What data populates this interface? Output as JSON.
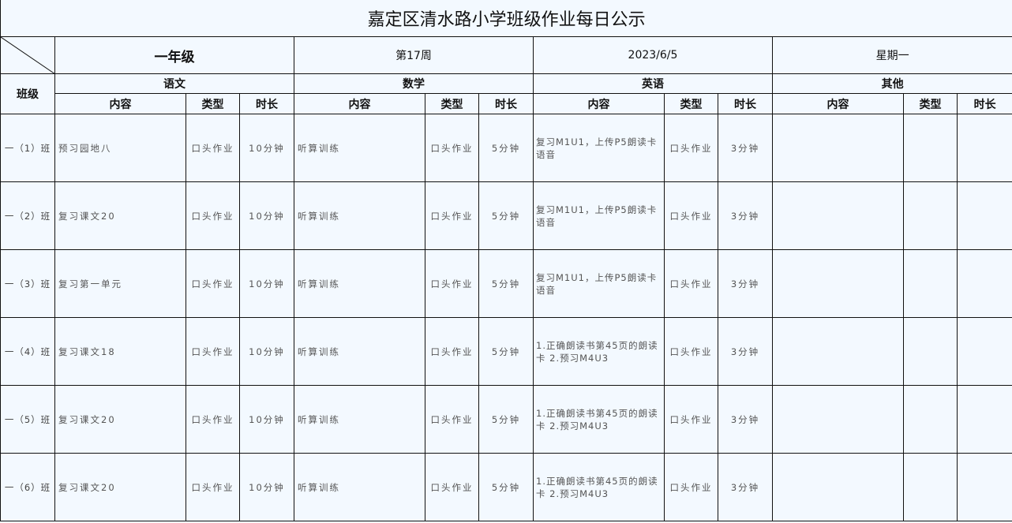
{
  "title": "嘉定区清水路小学班级作业每日公示",
  "header": {
    "grade": "一年级",
    "week": "第17周",
    "date": "2023/6/5",
    "weekday": "星期一",
    "class_label": "班级"
  },
  "subjects": [
    "语文",
    "数学",
    "英语",
    "其他"
  ],
  "subcols": {
    "content": "内容",
    "type": "类型",
    "duration": "时长"
  },
  "rows": [
    {
      "class": "一（1）班",
      "chinese": {
        "content": "预习园地八",
        "type": "口头作业",
        "duration": "10分钟"
      },
      "math": {
        "content": "听算训练",
        "type": "口头作业",
        "duration": "5分钟"
      },
      "english": {
        "content": "复习M1U1，上传P5朗读卡语音",
        "type": "口头作业",
        "duration": "3分钟"
      }
    },
    {
      "class": "一（2）班",
      "chinese": {
        "content": "复习课文20",
        "type": "口头作业",
        "duration": "10分钟"
      },
      "math": {
        "content": "听算训练",
        "type": "口头作业",
        "duration": "5分钟"
      },
      "english": {
        "content": "复习M1U1，上传P5朗读卡语音",
        "type": "口头作业",
        "duration": "3分钟"
      }
    },
    {
      "class": "一（3）班",
      "chinese": {
        "content": "复习第一单元",
        "type": "口头作业",
        "duration": "10分钟"
      },
      "math": {
        "content": "听算训练",
        "type": "口头作业",
        "duration": "5分钟"
      },
      "english": {
        "content": "复习M1U1，上传P5朗读卡语音",
        "type": "口头作业",
        "duration": "3分钟"
      }
    },
    {
      "class": "一（4）班",
      "chinese": {
        "content": "复习课文18",
        "type": "口头作业",
        "duration": "10分钟"
      },
      "math": {
        "content": "听算训练",
        "type": "口头作业",
        "duration": "5分钟"
      },
      "english": {
        "content": "1.正确朗读书第45页的朗读卡 2.预习M4U3",
        "type": "口头作业",
        "duration": "3分钟"
      }
    },
    {
      "class": "一（5）班",
      "chinese": {
        "content": "复习课文20",
        "type": "口头作业",
        "duration": "10分钟"
      },
      "math": {
        "content": "听算训练",
        "type": "口头作业",
        "duration": "5分钟"
      },
      "english": {
        "content": "1.正确朗读书第45页的朗读卡 2.预习M4U3",
        "type": "口头作业",
        "duration": "3分钟"
      }
    },
    {
      "class": "一（6）班",
      "chinese": {
        "content": "复习课文20",
        "type": "口头作业",
        "duration": "10分钟"
      },
      "math": {
        "content": "听算训练",
        "type": "口头作业",
        "duration": "5分钟"
      },
      "english": {
        "content": "1.正确朗读书第45页的朗读卡 2.预习M4U3",
        "type": "口头作业",
        "duration": "3分钟"
      }
    }
  ]
}
